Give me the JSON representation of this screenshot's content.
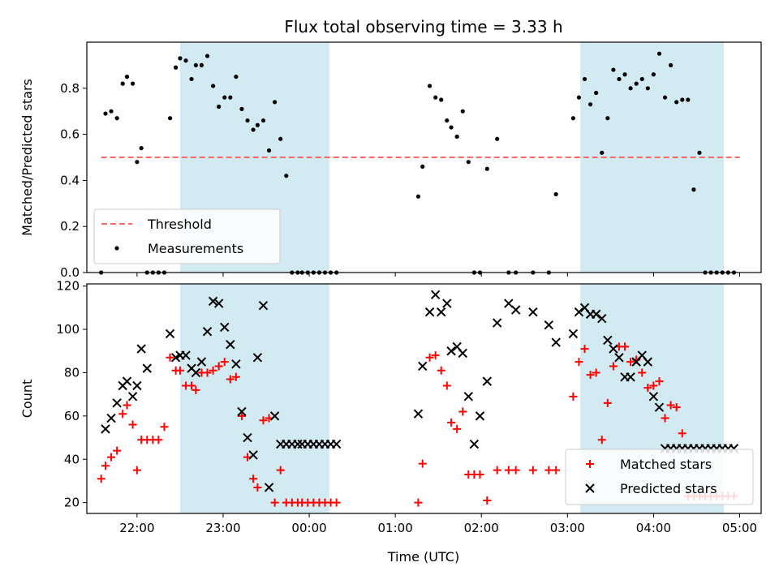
{
  "figure": {
    "title": "Flux total observing time = 3.33 h",
    "xlabel": "Time (UTC)"
  },
  "colors": {
    "band": "#add8e6",
    "threshold": "#ff6666",
    "measurement": "#000000",
    "matched": "#ff0000",
    "predicted": "#000000"
  },
  "chart_data": [
    {
      "type": "scatter",
      "ylabel": "Matched/Predicted stars",
      "ylim": [
        0,
        1.0
      ],
      "yticks": [
        0.0,
        0.2,
        0.4,
        0.6,
        0.8
      ],
      "ytick_labels": [
        "0.0",
        "0.2",
        "0.4",
        "0.6",
        "0.8"
      ],
      "xlim": [
        "21:25",
        "05:15"
      ],
      "xticks": [
        "22:00",
        "23:00",
        "00:00",
        "01:00",
        "02:00",
        "03:00",
        "04:00",
        "05:00"
      ],
      "shaded_bands": [
        [
          "22:30",
          "00:14"
        ],
        [
          "03:09",
          "04:49"
        ]
      ],
      "threshold": {
        "name": "Threshold",
        "y": 0.5,
        "x": [
          "21:35",
          "05:00"
        ]
      },
      "legend": {
        "position": "lower-left",
        "entries": [
          "Threshold",
          "Measurements"
        ]
      },
      "series": [
        {
          "name": "Measurements",
          "x": [
            "21:35",
            "21:38",
            "21:42",
            "21:46",
            "21:50",
            "21:53",
            "21:57",
            "22:00",
            "22:03",
            "22:07",
            "22:11",
            "22:15",
            "22:19",
            "22:23",
            "22:27",
            "22:30",
            "22:34",
            "22:38",
            "22:41",
            "22:45",
            "22:49",
            "22:53",
            "22:57",
            "23:01",
            "23:05",
            "23:09",
            "23:13",
            "23:17",
            "23:21",
            "23:24",
            "23:28",
            "23:32",
            "23:36",
            "23:40",
            "23:44",
            "23:48",
            "23:52",
            "23:55",
            "23:59",
            "00:03",
            "00:07",
            "00:11",
            "00:15",
            "00:19",
            "01:16",
            "01:19",
            "01:24",
            "01:28",
            "01:32",
            "01:36",
            "01:39",
            "01:43",
            "01:47",
            "01:51",
            "01:55",
            "01:59",
            "02:04",
            "02:11",
            "02:19",
            "02:24",
            "02:36",
            "02:47",
            "02:52",
            "03:04",
            "03:08",
            "03:12",
            "03:16",
            "03:20",
            "03:24",
            "03:28",
            "03:32",
            "03:36",
            "03:40",
            "03:44",
            "03:48",
            "03:52",
            "03:56",
            "04:00",
            "04:04",
            "04:08",
            "04:12",
            "04:16",
            "04:20",
            "04:24",
            "04:28",
            "04:32",
            "04:36",
            "04:40",
            "04:44",
            "04:48",
            "04:52",
            "04:56"
          ],
          "y": [
            0.0,
            0.69,
            0.7,
            0.67,
            0.82,
            0.85,
            0.82,
            0.48,
            0.54,
            0.0,
            0.0,
            0.0,
            0.0,
            0.67,
            0.89,
            0.93,
            0.92,
            0.84,
            0.9,
            0.9,
            0.94,
            0.81,
            0.72,
            0.76,
            0.76,
            0.85,
            0.71,
            0.66,
            0.62,
            0.64,
            0.66,
            0.53,
            0.74,
            0.58,
            0.42,
            0.0,
            0.0,
            0.0,
            0.0,
            0.0,
            0.0,
            0.0,
            0.0,
            0.0,
            0.33,
            0.46,
            0.81,
            0.76,
            0.75,
            0.66,
            0.63,
            0.59,
            0.7,
            0.48,
            0.0,
            0.0,
            0.45,
            0.58,
            0.0,
            0.0,
            0.0,
            0.0,
            0.34,
            0.67,
            0.76,
            0.84,
            0.73,
            0.78,
            0.52,
            0.67,
            0.88,
            0.84,
            0.86,
            0.8,
            0.82,
            0.84,
            0.8,
            0.86,
            0.95,
            0.76,
            0.9,
            0.74,
            0.75,
            0.75,
            0.36,
            0.52,
            0.0,
            0.0,
            0.0,
            0.0,
            0.0,
            0.0
          ]
        }
      ]
    },
    {
      "type": "scatter",
      "ylabel": "Count",
      "ylim": [
        15,
        121
      ],
      "yticks": [
        20,
        40,
        60,
        80,
        100,
        120
      ],
      "ytick_labels": [
        "20",
        "40",
        "60",
        "80",
        "100",
        "120"
      ],
      "xlim": [
        "21:25",
        "05:15"
      ],
      "xticks": [
        "22:00",
        "23:00",
        "00:00",
        "01:00",
        "02:00",
        "03:00",
        "04:00",
        "05:00"
      ],
      "xtick_labels": [
        "22:00",
        "23:00",
        "00:00",
        "01:00",
        "02:00",
        "03:00",
        "04:00",
        "05:00"
      ],
      "shaded_bands": [
        [
          "22:30",
          "00:14"
        ],
        [
          "03:09",
          "04:49"
        ]
      ],
      "legend": {
        "position": "lower-right",
        "entries": [
          "Matched stars",
          "Predicted stars"
        ]
      },
      "series": [
        {
          "name": "Matched stars",
          "marker": "plus",
          "x": [
            "21:35",
            "21:38",
            "21:42",
            "21:46",
            "21:50",
            "21:53",
            "21:57",
            "22:00",
            "22:03",
            "22:07",
            "22:11",
            "22:15",
            "22:19",
            "22:23",
            "22:27",
            "22:30",
            "22:34",
            "22:38",
            "22:41",
            "22:45",
            "22:49",
            "22:53",
            "22:57",
            "23:01",
            "23:05",
            "23:09",
            "23:13",
            "23:17",
            "23:21",
            "23:24",
            "23:28",
            "23:32",
            "23:36",
            "23:40",
            "23:44",
            "23:48",
            "23:52",
            "23:55",
            "23:59",
            "00:03",
            "00:07",
            "00:11",
            "00:15",
            "00:19",
            "01:16",
            "01:19",
            "01:24",
            "01:28",
            "01:32",
            "01:36",
            "01:39",
            "01:43",
            "01:47",
            "01:51",
            "01:55",
            "01:59",
            "02:04",
            "02:11",
            "02:19",
            "02:24",
            "02:36",
            "02:47",
            "02:52",
            "03:04",
            "03:08",
            "03:12",
            "03:16",
            "03:20",
            "03:24",
            "03:28",
            "03:32",
            "03:36",
            "03:40",
            "03:44",
            "03:48",
            "03:52",
            "03:56",
            "04:00",
            "04:04",
            "04:08",
            "04:12",
            "04:16",
            "04:20",
            "04:24",
            "04:28",
            "04:32",
            "04:36",
            "04:40",
            "04:44",
            "04:48",
            "04:52",
            "04:56"
          ],
          "y": [
            31,
            37,
            41,
            44,
            61,
            65,
            56,
            35,
            49,
            49,
            49,
            49,
            55,
            87,
            81,
            81,
            74,
            74,
            72,
            80,
            80,
            81,
            83,
            85,
            77,
            78,
            60,
            41,
            31,
            27,
            58,
            59,
            20,
            35,
            20,
            20,
            20,
            20,
            20,
            20,
            20,
            20,
            20,
            20,
            20,
            38,
            87,
            88,
            81,
            74,
            57,
            54,
            62,
            33,
            33,
            33,
            21,
            35,
            35,
            35,
            35,
            35,
            35,
            69,
            85,
            91,
            79,
            80,
            49,
            66,
            83,
            92,
            92,
            85,
            86,
            80,
            73,
            74,
            76,
            59,
            65,
            64,
            52,
            23,
            23,
            23,
            23,
            23,
            23,
            23,
            23,
            23
          ]
        },
        {
          "name": "Predicted stars",
          "marker": "x",
          "x": [
            "21:38",
            "21:42",
            "21:46",
            "21:50",
            "21:53",
            "21:57",
            "22:00",
            "22:03",
            "22:07",
            "22:23",
            "22:27",
            "22:30",
            "22:34",
            "22:38",
            "22:41",
            "22:45",
            "22:49",
            "22:53",
            "22:57",
            "23:01",
            "23:05",
            "23:09",
            "23:13",
            "23:17",
            "23:21",
            "23:24",
            "23:28",
            "23:32",
            "23:36",
            "23:40",
            "23:44",
            "23:48",
            "23:52",
            "23:55",
            "23:59",
            "00:03",
            "00:07",
            "00:11",
            "00:15",
            "00:19",
            "01:16",
            "01:19",
            "01:24",
            "01:28",
            "01:32",
            "01:36",
            "01:39",
            "01:43",
            "01:47",
            "01:51",
            "01:55",
            "01:59",
            "02:04",
            "02:11",
            "02:19",
            "02:24",
            "02:36",
            "02:47",
            "02:52",
            "03:04",
            "03:08",
            "03:12",
            "03:16",
            "03:20",
            "03:24",
            "03:28",
            "03:32",
            "03:36",
            "03:40",
            "03:44",
            "03:48",
            "03:52",
            "03:56",
            "04:00",
            "04:04",
            "04:08",
            "04:12",
            "04:16",
            "04:20",
            "04:24",
            "04:28",
            "04:32",
            "04:36",
            "04:40",
            "04:44",
            "04:48",
            "04:52",
            "04:56"
          ],
          "y": [
            54,
            59,
            66,
            74,
            76,
            69,
            74,
            91,
            82,
            98,
            87,
            88,
            88,
            82,
            80,
            85,
            99,
            113,
            112,
            101,
            93,
            84,
            62,
            50,
            42,
            87,
            111,
            27,
            60,
            47,
            47,
            47,
            47,
            47,
            47,
            47,
            47,
            47,
            47,
            47,
            61,
            83,
            108,
            116,
            108,
            112,
            90,
            92,
            89,
            69,
            47,
            60,
            76,
            103,
            112,
            109,
            108,
            102,
            94,
            98,
            108,
            110,
            107,
            107,
            105,
            95,
            91,
            87,
            78,
            78,
            85,
            88,
            85,
            69,
            64,
            45,
            45,
            45,
            45,
            45,
            45,
            45,
            45,
            45,
            45,
            45,
            45,
            45
          ]
        }
      ]
    }
  ]
}
